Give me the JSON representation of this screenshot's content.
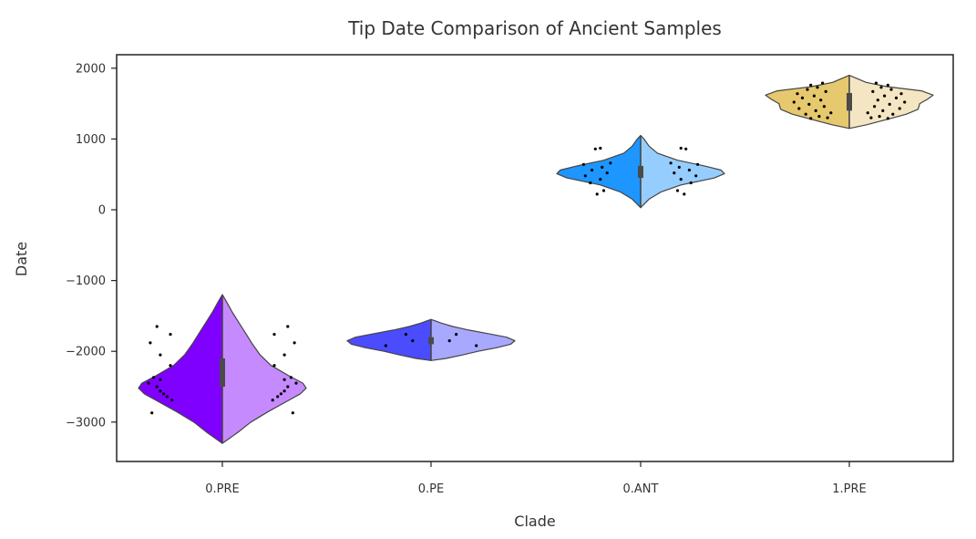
{
  "chart_data": {
    "type": "violin",
    "title": "Tip Date Comparison of Ancient Samples",
    "xlabel": "Clade",
    "ylabel": "Date",
    "ylim": [
      -3600,
      2200
    ],
    "y_ticks": [
      2000,
      1000,
      0,
      -1000,
      -2000,
      -3000
    ],
    "y_tick_labels": [
      "2000",
      "1000",
      "0",
      "−1000",
      "−2000",
      "−3000"
    ],
    "grid": false,
    "split": true,
    "categories": [
      {
        "name": "0.PRE",
        "colors": [
          "#7f00ff",
          "#c68aff"
        ],
        "min": -3300,
        "max": -1200,
        "q1": -2500,
        "median": -2300,
        "q3": -2100,
        "shape": [
          [
            -3300,
            0.0
          ],
          [
            -3150,
            0.18
          ],
          [
            -3000,
            0.34
          ],
          [
            -2850,
            0.55
          ],
          [
            -2700,
            0.78
          ],
          [
            -2600,
            0.93
          ],
          [
            -2520,
            1.0
          ],
          [
            -2450,
            0.96
          ],
          [
            -2350,
            0.8
          ],
          [
            -2200,
            0.58
          ],
          [
            -2050,
            0.45
          ],
          [
            -1900,
            0.36
          ],
          [
            -1750,
            0.28
          ],
          [
            -1600,
            0.2
          ],
          [
            -1450,
            0.12
          ],
          [
            -1300,
            0.05
          ],
          [
            -1200,
            0.0
          ]
        ],
        "points_left": [
          [
            -2870,
            -0.84
          ],
          [
            -2690,
            -0.6
          ],
          [
            -2640,
            -0.66
          ],
          [
            -2600,
            -0.7
          ],
          [
            -2560,
            -0.74
          ],
          [
            -2500,
            -0.78
          ],
          [
            -2450,
            -0.88
          ],
          [
            -2400,
            -0.74
          ],
          [
            -2370,
            -0.82
          ],
          [
            -2200,
            -0.62
          ],
          [
            -2050,
            -0.74
          ],
          [
            -1880,
            -0.86
          ],
          [
            -1760,
            -0.62
          ],
          [
            -1650,
            -0.78
          ]
        ],
        "points_right": [
          [
            -2870,
            0.84
          ],
          [
            -2690,
            0.6
          ],
          [
            -2640,
            0.66
          ],
          [
            -2600,
            0.7
          ],
          [
            -2560,
            0.74
          ],
          [
            -2500,
            0.78
          ],
          [
            -2450,
            0.88
          ],
          [
            -2400,
            0.74
          ],
          [
            -2370,
            0.82
          ],
          [
            -2200,
            0.62
          ],
          [
            -2050,
            0.74
          ],
          [
            -1880,
            0.86
          ],
          [
            -1760,
            0.62
          ],
          [
            -1650,
            0.78
          ]
        ]
      },
      {
        "name": "0.PE",
        "colors": [
          "#4c4cff",
          "#a8a8ff"
        ],
        "min": -2130,
        "max": -1550,
        "q1": -1900,
        "median": -1850,
        "q3": -1800,
        "shape": [
          [
            -2130,
            0.0
          ],
          [
            -2100,
            0.18
          ],
          [
            -2050,
            0.38
          ],
          [
            -2000,
            0.56
          ],
          [
            -1950,
            0.78
          ],
          [
            -1900,
            0.95
          ],
          [
            -1850,
            1.0
          ],
          [
            -1800,
            0.9
          ],
          [
            -1750,
            0.68
          ],
          [
            -1700,
            0.45
          ],
          [
            -1650,
            0.26
          ],
          [
            -1600,
            0.12
          ],
          [
            -1570,
            0.05
          ],
          [
            -1550,
            0.0
          ]
        ],
        "points_left": [
          [
            -1920,
            -0.54
          ],
          [
            -1850,
            -0.22
          ],
          [
            -1760,
            -0.3
          ]
        ],
        "points_right": [
          [
            -1920,
            0.54
          ],
          [
            -1850,
            0.22
          ],
          [
            -1760,
            0.3
          ]
        ]
      },
      {
        "name": "0.ANT",
        "colors": [
          "#1e96ff",
          "#96cdff"
        ],
        "min": 30,
        "max": 1050,
        "q1": 450,
        "median": 560,
        "q3": 620,
        "shape": [
          [
            30,
            0.0
          ],
          [
            150,
            0.1
          ],
          [
            250,
            0.24
          ],
          [
            350,
            0.48
          ],
          [
            450,
            0.88
          ],
          [
            510,
            1.0
          ],
          [
            560,
            0.96
          ],
          [
            620,
            0.76
          ],
          [
            700,
            0.44
          ],
          [
            800,
            0.2
          ],
          [
            900,
            0.1
          ],
          [
            1000,
            0.04
          ],
          [
            1050,
            0.0
          ]
        ],
        "points_left": [
          [
            220,
            -0.52
          ],
          [
            270,
            -0.44
          ],
          [
            380,
            -0.6
          ],
          [
            430,
            -0.48
          ],
          [
            480,
            -0.66
          ],
          [
            520,
            -0.4
          ],
          [
            560,
            -0.58
          ],
          [
            600,
            -0.46
          ],
          [
            640,
            -0.68
          ],
          [
            660,
            -0.36
          ],
          [
            860,
            -0.54
          ],
          [
            870,
            -0.48
          ]
        ],
        "points_right": [
          [
            220,
            0.52
          ],
          [
            270,
            0.44
          ],
          [
            380,
            0.6
          ],
          [
            430,
            0.48
          ],
          [
            480,
            0.66
          ],
          [
            520,
            0.4
          ],
          [
            560,
            0.58
          ],
          [
            600,
            0.46
          ],
          [
            640,
            0.68
          ],
          [
            660,
            0.36
          ],
          [
            860,
            0.54
          ],
          [
            870,
            0.48
          ]
        ]
      },
      {
        "name": "1.PRE",
        "colors": [
          "#e6c86e",
          "#f5e6c3"
        ],
        "min": 1150,
        "max": 1900,
        "q1": 1400,
        "median": 1540,
        "q3": 1650,
        "shape": [
          [
            1150,
            0.0
          ],
          [
            1200,
            0.2
          ],
          [
            1280,
            0.46
          ],
          [
            1350,
            0.68
          ],
          [
            1420,
            0.82
          ],
          [
            1500,
            0.84
          ],
          [
            1560,
            0.93
          ],
          [
            1620,
            1.0
          ],
          [
            1680,
            0.86
          ],
          [
            1740,
            0.45
          ],
          [
            1800,
            0.2
          ],
          [
            1860,
            0.08
          ],
          [
            1900,
            0.0
          ]
        ],
        "points_left": [
          [
            1290,
            -0.46
          ],
          [
            1300,
            -0.26
          ],
          [
            1320,
            -0.36
          ],
          [
            1350,
            -0.52
          ],
          [
            1370,
            -0.22
          ],
          [
            1400,
            -0.4
          ],
          [
            1430,
            -0.6
          ],
          [
            1460,
            -0.3
          ],
          [
            1490,
            -0.48
          ],
          [
            1520,
            -0.66
          ],
          [
            1550,
            -0.34
          ],
          [
            1580,
            -0.56
          ],
          [
            1610,
            -0.42
          ],
          [
            1640,
            -0.62
          ],
          [
            1670,
            -0.28
          ],
          [
            1700,
            -0.5
          ],
          [
            1730,
            -0.38
          ],
          [
            1760,
            -0.46
          ],
          [
            1790,
            -0.32
          ]
        ],
        "points_right": [
          [
            1290,
            0.46
          ],
          [
            1300,
            0.26
          ],
          [
            1320,
            0.36
          ],
          [
            1350,
            0.52
          ],
          [
            1370,
            0.22
          ],
          [
            1400,
            0.4
          ],
          [
            1430,
            0.6
          ],
          [
            1460,
            0.3
          ],
          [
            1490,
            0.48
          ],
          [
            1520,
            0.66
          ],
          [
            1550,
            0.34
          ],
          [
            1580,
            0.56
          ],
          [
            1610,
            0.42
          ],
          [
            1640,
            0.62
          ],
          [
            1670,
            0.28
          ],
          [
            1700,
            0.5
          ],
          [
            1730,
            0.38
          ],
          [
            1760,
            0.46
          ],
          [
            1790,
            0.32
          ]
        ]
      }
    ]
  }
}
